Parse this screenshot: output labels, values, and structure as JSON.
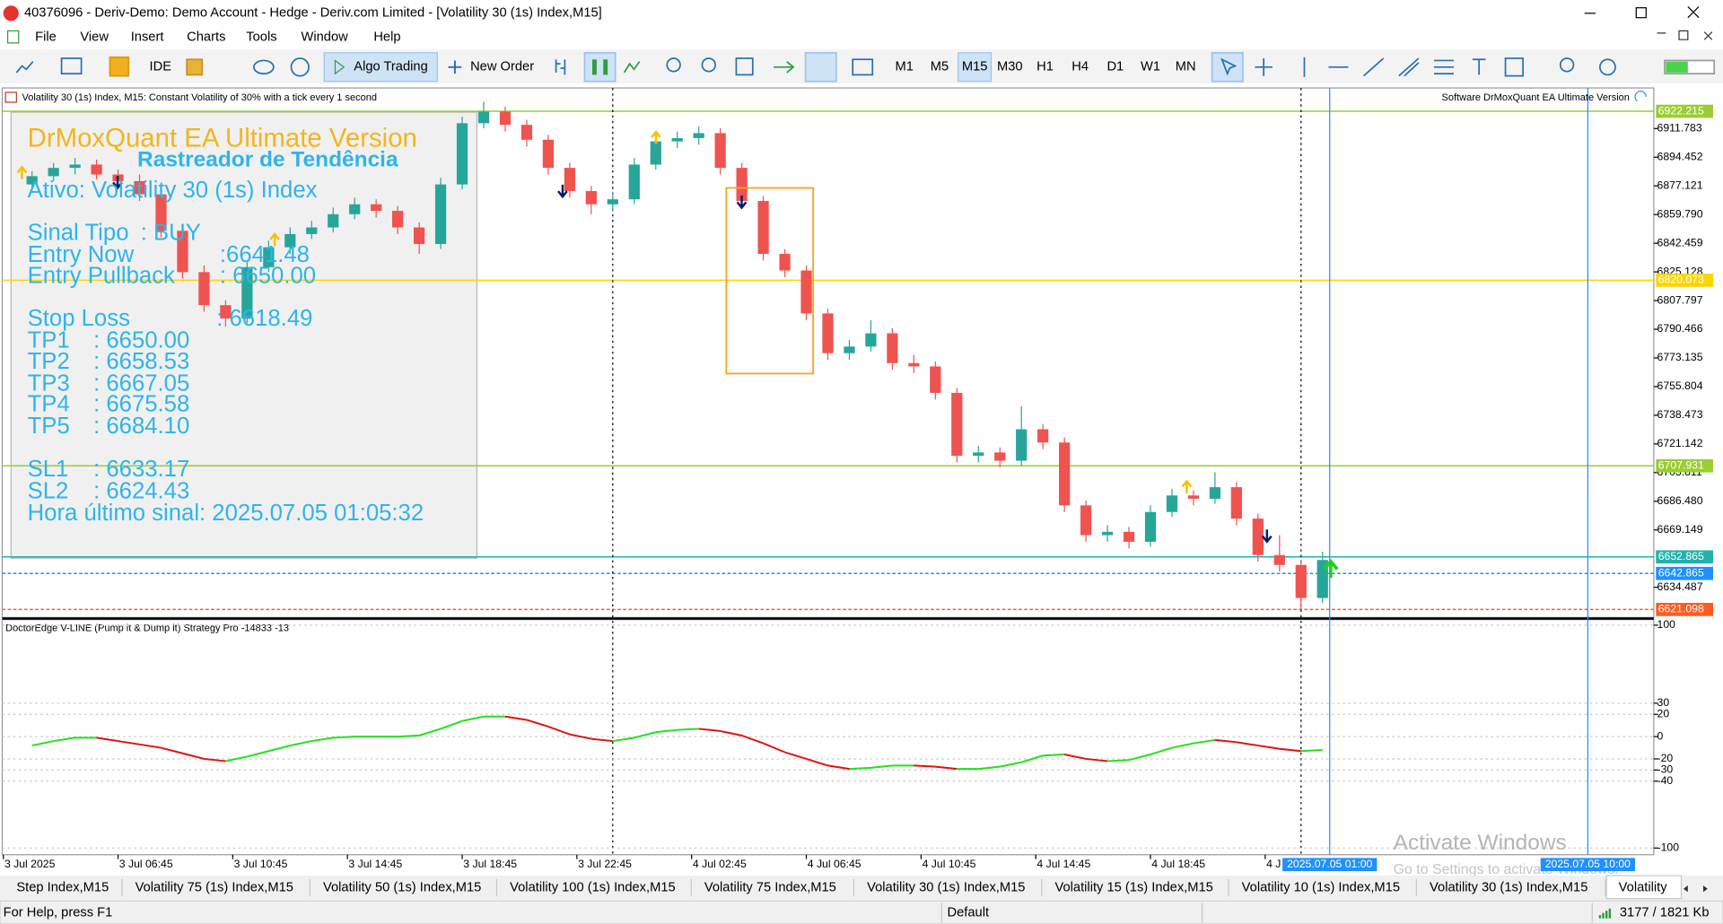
{
  "window": {
    "title": "40376096 - Deriv-Demo: Demo Account - Hedge - Deriv.com Limited - [Volatility 30 (1s) Index,M15]"
  },
  "menu": {
    "items": [
      "File",
      "View",
      "Insert",
      "Charts",
      "Tools",
      "Window",
      "Help"
    ]
  },
  "toolbar": {
    "ide": "IDE",
    "algo_trading": "Algo Trading",
    "new_order": "New Order",
    "timeframes": [
      "M1",
      "M5",
      "M15",
      "M30",
      "H1",
      "H4",
      "D1",
      "W1",
      "MN"
    ],
    "active_timeframe": 2
  },
  "chart": {
    "type": "candlestick",
    "info": "Volatility 30 (1s) Index, M15:  Constant Volatility of 30% with a tick every 1 second",
    "ea_label": "Software DrMoxQuant EA Ultimate Version",
    "up_color": "#26a69a",
    "down_color": "#ef5350",
    "xlim": [
      2.71,
      60.3
    ],
    "ylim": [
      6617.6,
      6936.3
    ],
    "yticks": [
      6911.783,
      6894.452,
      6877.121,
      {
        "value": 6859.79,
        "label": "6859.790"
      },
      6842.459,
      6825.128,
      6807.797,
      6790.466,
      6773.135,
      6755.804,
      6738.473,
      6721.142,
      6703.811,
      {
        "value": 6686.48,
        "label": "6686.480"
      },
      6669.149,
      6634.487
    ],
    "xticks": [
      {
        "value": 2.75,
        "label": "3 Jul 2025"
      },
      {
        "value": 6.75,
        "label": "3 Jul 06:45"
      },
      {
        "value": 10.75,
        "label": "3 Jul 10:45"
      },
      {
        "value": 14.75,
        "label": "3 Jul 14:45"
      },
      {
        "value": 18.75,
        "label": "3 Jul 18:45"
      },
      {
        "value": 22.75,
        "label": "3 Jul 22:45"
      },
      {
        "value": 26.75,
        "label": "4 Jul 02:45"
      },
      {
        "value": 30.75,
        "label": "4 Jul 06:45"
      },
      {
        "value": 34.75,
        "label": "4 Jul 10:45"
      },
      {
        "value": 38.75,
        "label": "4 Jul 14:45"
      },
      {
        "value": 42.75,
        "label": "4 Jul 18:45"
      },
      {
        "value": 46.75,
        "label": "4 J"
      }
    ],
    "x": [
      3.75,
      4.5,
      5.25,
      6,
      6.75,
      7.5,
      8.25,
      9,
      9.75,
      10.5,
      11.25,
      12,
      12.75,
      13.5,
      14.25,
      15,
      15.75,
      16.5,
      17.25,
      18,
      18.75,
      19.5,
      20.25,
      21,
      21.75,
      22.5,
      23.25,
      24,
      24.75,
      25.5,
      26.25,
      27,
      27.75,
      28.5,
      29.25,
      30,
      30.75,
      31.5,
      32.25,
      33,
      33.75,
      34.5,
      35.25,
      36,
      36.75,
      37.5,
      38.25,
      39,
      39.75,
      40.5,
      41.25,
      42,
      42.75,
      43.5,
      44.25,
      45,
      45.75,
      46.5,
      47.25,
      48,
      48.75
    ],
    "candles": [
      [
        6878,
        6886,
        6875,
        6883
      ],
      [
        6883,
        6891,
        6880,
        6888
      ],
      [
        6888,
        6894,
        6884,
        6890
      ],
      [
        6890,
        6893,
        6881,
        6884
      ],
      [
        6884,
        6887,
        6876,
        6880
      ],
      [
        6880,
        6884,
        6868,
        6872
      ],
      [
        6872,
        6875,
        6846,
        6850
      ],
      [
        6850,
        6853,
        6821,
        6825
      ],
      [
        6825,
        6829,
        6801,
        6805
      ],
      [
        6805,
        6808,
        6792,
        6797
      ],
      [
        6797,
        6831,
        6794,
        6828
      ],
      [
        6828,
        6844,
        6825,
        6840
      ],
      [
        6840,
        6852,
        6836,
        6848
      ],
      [
        6848,
        6856,
        6845,
        6852
      ],
      [
        6852,
        6864,
        6849,
        6860
      ],
      [
        6860,
        6870,
        6857,
        6866
      ],
      [
        6866,
        6869,
        6858,
        6862
      ],
      [
        6862,
        6865,
        6848,
        6852
      ],
      [
        6852,
        6855,
        6836,
        6842
      ],
      [
        6842,
        6882,
        6839,
        6878
      ],
      [
        6878,
        6919,
        6875,
        6915
      ],
      [
        6915,
        6928,
        6912,
        6922
      ],
      [
        6922,
        6925,
        6910,
        6914
      ],
      [
        6914,
        6917,
        6901,
        6905
      ],
      [
        6905,
        6908,
        6884,
        6888
      ],
      [
        6888,
        6891,
        6870,
        6874
      ],
      [
        6874,
        6877,
        6860,
        6866
      ],
      [
        6866,
        6873,
        6862,
        6869
      ],
      [
        6869,
        6894,
        6866,
        6890
      ],
      [
        6890,
        6908,
        6887,
        6904
      ],
      [
        6904,
        6910,
        6900,
        6906
      ],
      [
        6906,
        6913,
        6902,
        6909
      ],
      [
        6909,
        6912,
        6884,
        6888
      ],
      [
        6888,
        6891,
        6864,
        6868
      ],
      [
        6868,
        6871,
        6832,
        6836
      ],
      [
        6836,
        6839,
        6822,
        6826
      ],
      [
        6826,
        6829,
        6796,
        6800
      ],
      [
        6800,
        6803,
        6772,
        6776
      ],
      [
        6776,
        6784,
        6772,
        6780
      ],
      [
        6780,
        6796,
        6777,
        6788
      ],
      [
        6788,
        6791,
        6766,
        6770
      ],
      [
        6770,
        6775,
        6764,
        6768
      ],
      [
        6768,
        6771,
        6748,
        6752
      ],
      [
        6752,
        6755,
        6710,
        6714
      ],
      [
        6714,
        6720,
        6710,
        6716
      ],
      [
        6716,
        6719,
        6707,
        6711
      ],
      [
        6711,
        6744,
        6708,
        6730
      ],
      [
        6730,
        6733,
        6718,
        6722
      ],
      [
        6722,
        6725,
        6680,
        6684
      ],
      [
        6684,
        6687,
        6662,
        6666
      ],
      [
        6666,
        6672,
        6662,
        6668
      ],
      [
        6668,
        6671,
        6658,
        6662
      ],
      [
        6662,
        6684,
        6659,
        6680
      ],
      [
        6680,
        6694,
        6677,
        6690
      ],
      [
        6690,
        6693,
        6684,
        6688
      ],
      [
        6688,
        6704,
        6685,
        6695
      ],
      [
        6695,
        6698,
        6672,
        6676
      ],
      [
        6676,
        6679,
        6650,
        6654
      ],
      [
        6654,
        6666,
        6644,
        6648
      ],
      [
        6648,
        6651,
        6621,
        6628
      ],
      [
        6628,
        6656,
        6625,
        6651
      ]
    ],
    "price_lines": [
      {
        "value": 6922.215,
        "color": "#9acd32",
        "style": "solid"
      },
      {
        "value": 6820.073,
        "color": "#ffd500",
        "style": "solid"
      },
      {
        "value": 6707.931,
        "color": "#9acd32",
        "style": "solid"
      },
      {
        "value": 6652.865,
        "color": "#20b2aa",
        "style": "solid"
      },
      {
        "value": 6642.865,
        "color": "#1e90ff",
        "style": "dashed"
      },
      {
        "value": 6621.098,
        "color": "#ff5a1f",
        "style": "dashed"
      }
    ],
    "vlines": [
      {
        "x": 24,
        "color": "#000000",
        "style": "dotted"
      },
      {
        "x": 48,
        "color": "#000000",
        "style": "dotted"
      },
      {
        "x": 49,
        "color": "#1e90ff",
        "style": "solid",
        "label": "2025.07.05 01:00"
      },
      {
        "x": 58,
        "color": "#1e90ff",
        "style": "solid",
        "label": "2025.07.05 10:00"
      }
    ]
  },
  "panel": {
    "title": "DrMoxQuant EA Ultimate Version",
    "subtitle": "Rastreador de Tendência",
    "asset": "Ativo: Volatility 30 (1s) Index",
    "rows": [
      {
        "label": "Sinal Tipo",
        "value": ": BUY"
      },
      {
        "label": "Entry Now",
        "value": ":6641.48"
      },
      {
        "label": "Entry Pullback",
        "value": ": 6650.00"
      },
      {
        "label": "Stop Loss",
        "value": ": 6618.49"
      },
      {
        "label": "TP1",
        "value": ": 6650.00"
      },
      {
        "label": "TP2",
        "value": ": 6658.53"
      },
      {
        "label": "TP3",
        "value": ": 6667.05"
      },
      {
        "label": "TP4",
        "value": ": 6675.58"
      },
      {
        "label": "TP5",
        "value": ": 6684.10"
      },
      {
        "label": "SL1",
        "value": ": 6633.17"
      },
      {
        "label": "SL2",
        "value": ": 6624.43"
      }
    ],
    "last_signal": "Hora último sinal: 2025.07.05 01:05:32"
  },
  "oscillator": {
    "type": "line",
    "title": "DoctorEdge V-LINE (Pump it & Dump it) Strategy Pro -14833 -13",
    "ylim": [
      -106,
      105
    ],
    "yticks": [
      100,
      30,
      20,
      0,
      -20,
      -30,
      -40,
      -100
    ],
    "up_color": "#22e01a",
    "down_color": "#e01010",
    "values": [
      -8,
      -4,
      -1,
      -1,
      -4,
      -7,
      -10,
      -15,
      -20,
      -22,
      -18,
      -13,
      -8,
      -4,
      -1,
      0,
      0,
      0,
      1,
      7,
      14,
      18,
      18,
      15,
      9,
      2,
      -2,
      -4,
      -1,
      4,
      6,
      7,
      5,
      1,
      -6,
      -14,
      -20,
      -26,
      -29,
      -28,
      -26,
      -26,
      -27,
      -29,
      -29,
      -27,
      -23,
      -17,
      -16,
      -20,
      -22,
      -21,
      -16,
      -10,
      -6,
      -3,
      -5,
      -8,
      -11,
      -13,
      -12
    ]
  },
  "tabs": {
    "items": [
      "Step Index,M15",
      "Volatility 75 (1s) Index,M15",
      "Volatility 50 (1s) Index,M15",
      "Volatility 100 (1s) Index,M15",
      "Volatility 75 Index,M15",
      "Volatility 30 (1s) Index,M15",
      "Volatility 15 (1s) Index,M15",
      "Volatility 10 (1s) Index,M15",
      "Volatility 30 (1s) Index,M15",
      "Volatility"
    ],
    "active": 9
  },
  "status": {
    "help": "For Help, press F1",
    "profile": "Default",
    "traffic": "3177 / 1821 Kb"
  },
  "watermark": {
    "title": "Activate Windows",
    "text": "Go to Settings to activate Windows."
  }
}
